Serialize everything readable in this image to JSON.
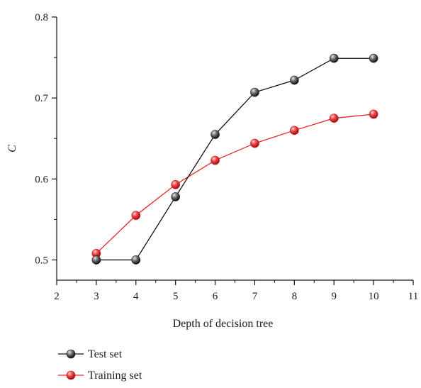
{
  "chart_data": {
    "type": "line",
    "xlabel": "Depth of decision tree",
    "ylabel": "C",
    "xlim": [
      2,
      11
    ],
    "ylim": [
      0.475,
      0.8
    ],
    "x_ticks": [
      "2",
      "3",
      "4",
      "5",
      "6",
      "7",
      "8",
      "9",
      "10",
      "11"
    ],
    "y_ticks": [
      "0.5",
      "0.6",
      "0.7",
      "0.8"
    ],
    "legend_position": "bottom-left",
    "series": [
      {
        "name": "Test set",
        "color": "#111111",
        "marker": "sphere-gray",
        "x": [
          3,
          4,
          5,
          6,
          7,
          8,
          9,
          10
        ],
        "y": [
          0.5,
          0.5,
          0.578,
          0.655,
          0.707,
          0.722,
          0.749,
          0.749
        ]
      },
      {
        "name": "Training set",
        "color": "#e8262a",
        "marker": "sphere-red",
        "x": [
          3,
          4,
          5,
          6,
          7,
          8,
          9,
          10
        ],
        "y": [
          0.508,
          0.555,
          0.593,
          0.623,
          0.644,
          0.66,
          0.675,
          0.68
        ]
      }
    ]
  }
}
